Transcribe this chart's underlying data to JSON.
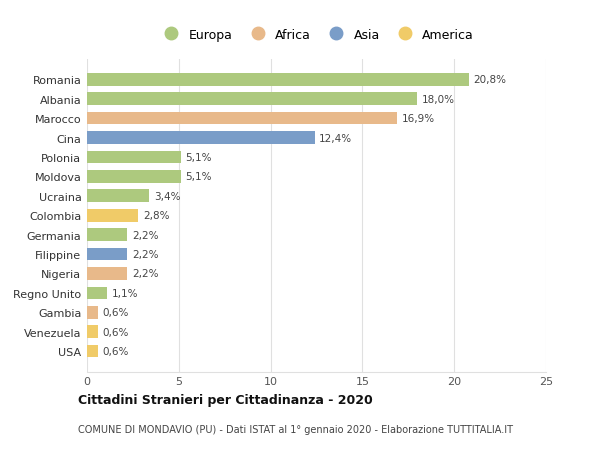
{
  "categories": [
    "Romania",
    "Albania",
    "Marocco",
    "Cina",
    "Polonia",
    "Moldova",
    "Ucraina",
    "Colombia",
    "Germania",
    "Filippine",
    "Nigeria",
    "Regno Unito",
    "Gambia",
    "Venezuela",
    "USA"
  ],
  "values": [
    20.8,
    18.0,
    16.9,
    12.4,
    5.1,
    5.1,
    3.4,
    2.8,
    2.2,
    2.2,
    2.2,
    1.1,
    0.6,
    0.6,
    0.6
  ],
  "labels": [
    "20,8%",
    "18,0%",
    "16,9%",
    "12,4%",
    "5,1%",
    "5,1%",
    "3,4%",
    "2,8%",
    "2,2%",
    "2,2%",
    "2,2%",
    "1,1%",
    "0,6%",
    "0,6%",
    "0,6%"
  ],
  "colors": [
    "#adc97e",
    "#adc97e",
    "#e8b98a",
    "#7a9dc8",
    "#adc97e",
    "#adc97e",
    "#adc97e",
    "#f0cb68",
    "#adc97e",
    "#7a9dc8",
    "#e8b98a",
    "#adc97e",
    "#e8b98a",
    "#f0cb68",
    "#f0cb68"
  ],
  "continent_colors": {
    "Europa": "#adc97e",
    "Africa": "#e8b98a",
    "Asia": "#7a9dc8",
    "America": "#f0cb68"
  },
  "xlim": [
    0,
    25
  ],
  "xticks": [
    0,
    5,
    10,
    15,
    20,
    25
  ],
  "title": "Cittadini Stranieri per Cittadinanza - 2020",
  "subtitle": "COMUNE DI MONDAVIO (PU) - Dati ISTAT al 1° gennaio 2020 - Elaborazione TUTTITALIA.IT",
  "background_color": "#ffffff",
  "grid_color": "#e0e0e0",
  "bar_height": 0.65
}
